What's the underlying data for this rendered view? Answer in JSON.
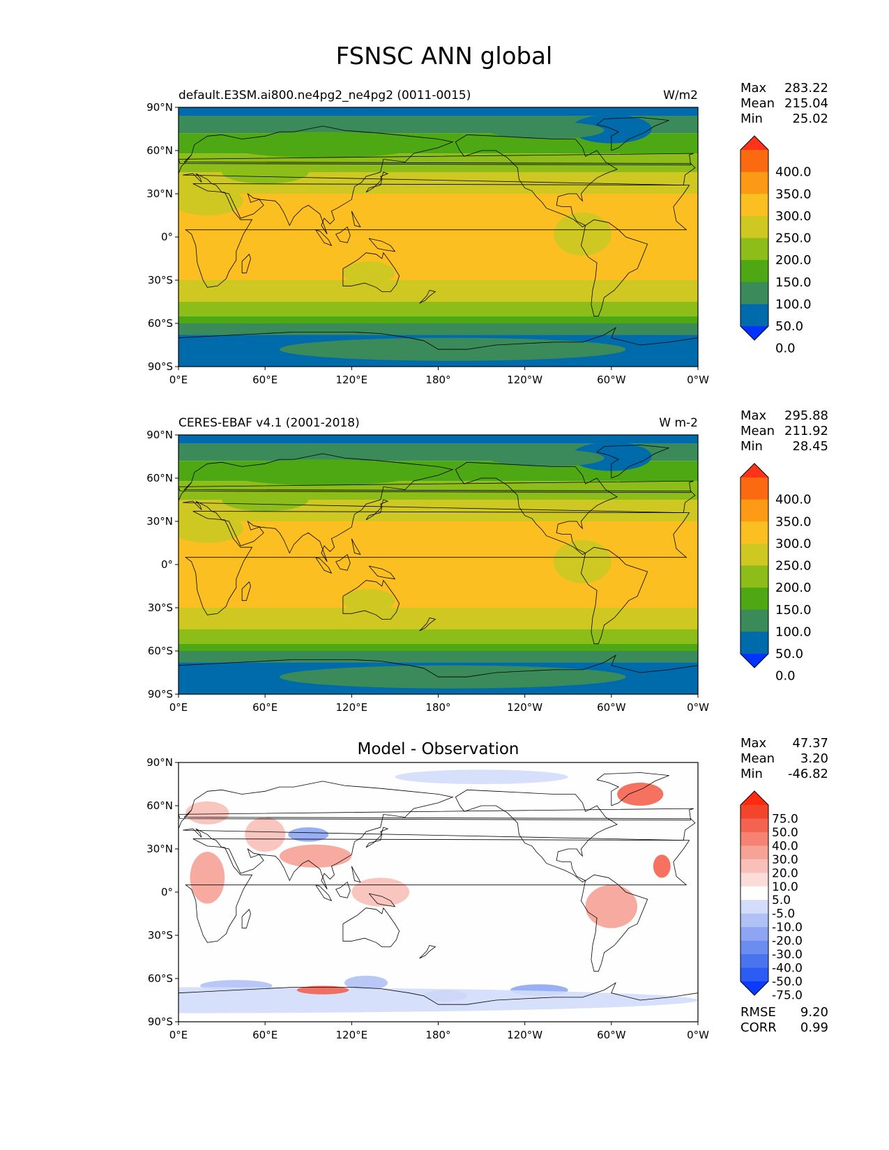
{
  "figure": {
    "title": "FSNSC ANN global"
  },
  "axes": {
    "lat_labels": [
      "90°N",
      "60°N",
      "30°N",
      "0°",
      "30°S",
      "60°S",
      "90°S"
    ],
    "lon_labels": [
      "0°E",
      "60°E",
      "120°E",
      "180°",
      "120°W",
      "60°W",
      "0°W"
    ]
  },
  "stats_labels": {
    "max": "Max",
    "mean": "Mean",
    "min": "Min",
    "rmse": "RMSE",
    "corr": "CORR"
  },
  "panels": [
    {
      "left_title": "default.E3SM.ai800.ne4pg2_ne4pg2 (0011-0015)",
      "center_title": "",
      "units": "W/m2",
      "stats": {
        "max": "283.22",
        "mean": "215.04",
        "min": "25.02"
      },
      "colorbar": {
        "labels": [
          "400.0",
          "350.0",
          "300.0",
          "250.0",
          "200.0",
          "150.0",
          "100.0",
          "50.0",
          "0.0"
        ],
        "colors": [
          "#0033ff",
          "#006baa",
          "#3a8a5a",
          "#4ea814",
          "#8cbd18",
          "#cfc823",
          "#fbbf22",
          "#fc9a16",
          "#fb6a10",
          "#ff3319"
        ]
      }
    },
    {
      "left_title": "CERES-EBAF v4.1 (2001-2018)",
      "center_title": "",
      "units": "W m-2",
      "stats": {
        "max": "295.88",
        "mean": "211.92",
        "min": "28.45"
      },
      "colorbar": {
        "labels": [
          "400.0",
          "350.0",
          "300.0",
          "250.0",
          "200.0",
          "150.0",
          "100.0",
          "50.0",
          "0.0"
        ],
        "colors": [
          "#0033ff",
          "#006baa",
          "#3a8a5a",
          "#4ea814",
          "#8cbd18",
          "#cfc823",
          "#fbbf22",
          "#fc9a16",
          "#fb6a10",
          "#ff3319"
        ]
      }
    },
    {
      "left_title": "",
      "center_title": "Model - Observation",
      "units": "",
      "stats": {
        "max": "47.37",
        "mean": "3.20",
        "min": "-46.82",
        "rmse": "9.20",
        "corr": "0.99"
      },
      "colorbar": {
        "labels": [
          "75.0",
          "50.0",
          "40.0",
          "30.0",
          "20.0",
          "10.0",
          "5.0",
          "-5.0",
          "-10.0",
          "-20.0",
          "-30.0",
          "-40.0",
          "-50.0",
          "-75.0"
        ],
        "colors": [
          "#0a3cff",
          "#2d5cf5",
          "#4a73ef",
          "#6b8cf0",
          "#8ea6f2",
          "#b0c1f5",
          "#d3ddf9",
          "#fefefe",
          "#fbdcd8",
          "#f8c0b8",
          "#f6a296",
          "#f58272",
          "#f4634f",
          "#f3442c",
          "#ff2b10"
        ]
      }
    }
  ]
}
